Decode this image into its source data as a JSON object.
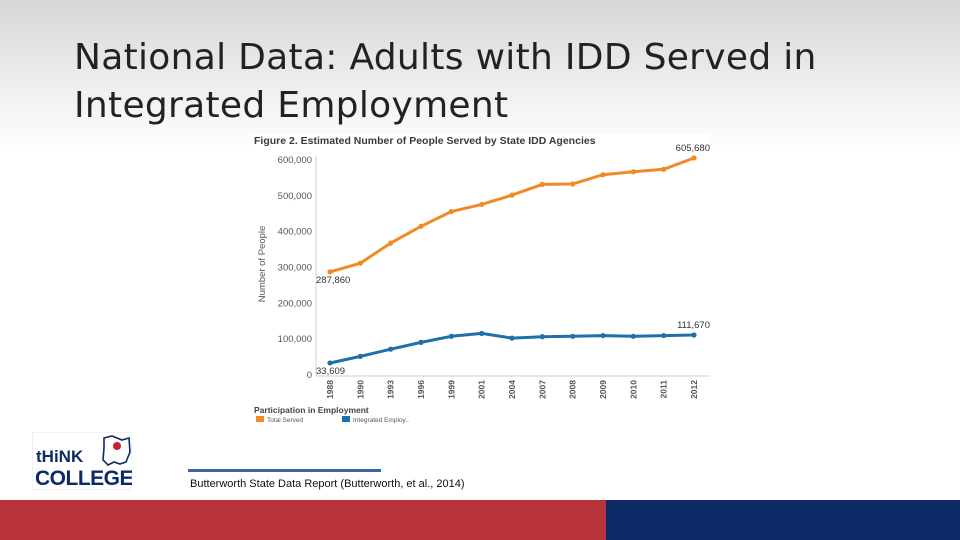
{
  "slide": {
    "title": "National Data: Adults with IDD Served in Integrated Employment",
    "source": "Butterworth State Data Report (Butterworth, et al., 2014)"
  },
  "logo": {
    "line1": "tHiNK",
    "line2": "COLLEGE!",
    "colors": {
      "navy": "#0b2a66",
      "red": "#c8202e"
    }
  },
  "footer": {
    "red": "#b8323c",
    "blue": "#0b2a66"
  },
  "chart_data": {
    "type": "line",
    "title": "Figure 2. Estimated Number of People Served by State IDD Agencies",
    "ylabel": "Number of People",
    "xlabel": "",
    "ylim": [
      0,
      600000
    ],
    "yticks": [
      0,
      100000,
      200000,
      300000,
      400000,
      500000,
      600000
    ],
    "ytick_labels": [
      "0",
      "100,000",
      "200,000",
      "300,000",
      "400,000",
      "500,000",
      "600,000"
    ],
    "categories": [
      "1988",
      "1990",
      "1993",
      "1996",
      "1999",
      "2001",
      "2004",
      "2007",
      "2008",
      "2009",
      "2010",
      "2011",
      "2012"
    ],
    "series": [
      {
        "name": "Total Served",
        "color": "#f08a24",
        "values": [
          287860,
          312000,
          368000,
          415000,
          456000,
          476000,
          502000,
          532000,
          533000,
          559000,
          567000,
          574000,
          605680
        ]
      },
      {
        "name": "Integrated Employ..",
        "color": "#1f6fa8",
        "values": [
          33609,
          52000,
          72000,
          91000,
          108000,
          116000,
          103000,
          107000,
          108000,
          110000,
          108000,
          110000,
          111670
        ]
      }
    ],
    "annotations": [
      {
        "series": 0,
        "index": 12,
        "text": "605,680"
      },
      {
        "series": 0,
        "index": 0,
        "text": "287,860"
      },
      {
        "series": 1,
        "index": 12,
        "text": "111,670"
      },
      {
        "series": 1,
        "index": 0,
        "text": "33,609"
      }
    ],
    "legend": {
      "title": "Participation in Employment",
      "position": "bottom-left"
    },
    "grid": false
  }
}
